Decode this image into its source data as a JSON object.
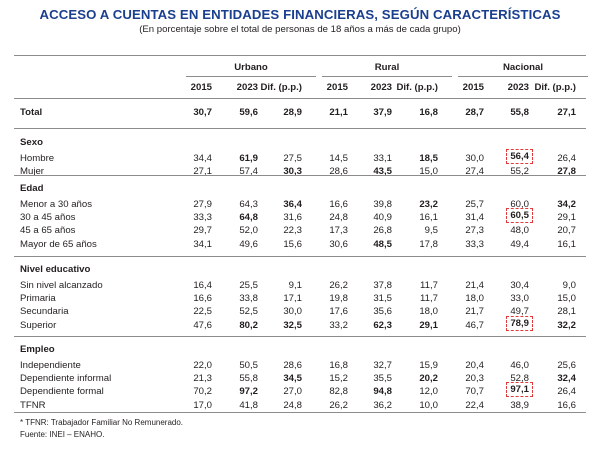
{
  "title": "ACCESO A CUENTAS EN ENTIDADES FINANCIERAS, SEGÚN CARACTERÍSTICAS",
  "subtitle": "(En porcentaje sobre el total de personas de 18 años a más de cada grupo)",
  "groups": [
    "Urbano",
    "Rural",
    "Nacional"
  ],
  "col_headers": [
    "2015",
    "2023",
    "Dif. (p.p.)",
    "2015",
    "2023",
    "Dif. (p.p.)",
    "2015",
    "2023",
    "Dif. (p.p.)"
  ],
  "total": {
    "label": "Total",
    "values": [
      "30,7",
      "59,6",
      "28,9",
      "21,1",
      "37,9",
      "16,8",
      "28,7",
      "55,8",
      "27,1"
    ]
  },
  "sections": [
    {
      "title": "Sexo",
      "rows": [
        {
          "label": "Hombre",
          "values": [
            "34,4",
            "61,9",
            "27,5",
            "14,5",
            "33,1",
            "18,5",
            "30,0",
            "56,4",
            "26,4"
          ],
          "bold": [
            1,
            5,
            7
          ],
          "highlight": [
            7
          ]
        },
        {
          "label": "Mujer",
          "values": [
            "27,1",
            "57,4",
            "30,3",
            "28,6",
            "43,5",
            "15,0",
            "27,4",
            "55,2",
            "27,8"
          ],
          "bold": [
            2,
            4,
            8
          ],
          "highlight": []
        }
      ]
    },
    {
      "title": "Edad",
      "rows": [
        {
          "label": "Menor a 30 años",
          "values": [
            "27,9",
            "64,3",
            "36,4",
            "16,6",
            "39,8",
            "23,2",
            "25,7",
            "60,0",
            "34,2"
          ],
          "bold": [
            2,
            5,
            8
          ],
          "highlight": []
        },
        {
          "label": "30 a 45 años",
          "values": [
            "33,3",
            "64,8",
            "31,6",
            "24,8",
            "40,9",
            "16,1",
            "31,4",
            "60,5",
            "29,1"
          ],
          "bold": [
            1,
            7
          ],
          "highlight": [
            7
          ]
        },
        {
          "label": "45 a 65 años",
          "values": [
            "29,7",
            "52,0",
            "22,3",
            "17,3",
            "26,8",
            "9,5",
            "27,3",
            "48,0",
            "20,7"
          ],
          "bold": [],
          "highlight": []
        },
        {
          "label": "Mayor de 65 años",
          "values": [
            "34,1",
            "49,6",
            "15,6",
            "30,6",
            "48,5",
            "17,8",
            "33,3",
            "49,4",
            "16,1"
          ],
          "bold": [
            4
          ],
          "highlight": []
        }
      ]
    },
    {
      "title": "Nivel educativo",
      "rows": [
        {
          "label": "Sin nivel alcanzado",
          "values": [
            "16,4",
            "25,5",
            "9,1",
            "26,2",
            "37,8",
            "11,7",
            "21,4",
            "30,4",
            "9,0"
          ],
          "bold": [],
          "highlight": []
        },
        {
          "label": "Primaria",
          "values": [
            "16,6",
            "33,8",
            "17,1",
            "19,8",
            "31,5",
            "11,7",
            "18,0",
            "33,0",
            "15,0"
          ],
          "bold": [],
          "highlight": []
        },
        {
          "label": "Secundaria",
          "values": [
            "22,5",
            "52,5",
            "30,0",
            "17,6",
            "35,6",
            "18,0",
            "21,7",
            "49,7",
            "28,1"
          ],
          "bold": [],
          "highlight": []
        },
        {
          "label": "Superior",
          "values": [
            "47,6",
            "80,2",
            "32,5",
            "33,2",
            "62,3",
            "29,1",
            "46,7",
            "78,9",
            "32,2"
          ],
          "bold": [
            1,
            2,
            4,
            5,
            7,
            8
          ],
          "highlight": [
            7
          ]
        }
      ]
    },
    {
      "title": "Empleo",
      "rows": [
        {
          "label": "Independiente",
          "values": [
            "22,0",
            "50,5",
            "28,6",
            "16,8",
            "32,7",
            "15,9",
            "20,4",
            "46,0",
            "25,6"
          ],
          "bold": [],
          "highlight": []
        },
        {
          "label": "Dependiente informal",
          "values": [
            "21,3",
            "55,8",
            "34,5",
            "15,2",
            "35,5",
            "20,2",
            "20,3",
            "52,8",
            "32,4"
          ],
          "bold": [
            2,
            5,
            8
          ],
          "highlight": []
        },
        {
          "label": "Dependiente formal",
          "values": [
            "70,2",
            "97,2",
            "27,0",
            "82,8",
            "94,8",
            "12,0",
            "70,7",
            "97,1",
            "26,4"
          ],
          "bold": [
            1,
            4,
            7
          ],
          "highlight": [
            7
          ]
        },
        {
          "label": "TFNR",
          "values": [
            "17,0",
            "41,8",
            "24,8",
            "26,2",
            "36,2",
            "10,0",
            "22,4",
            "38,9",
            "16,6"
          ],
          "bold": [],
          "highlight": []
        }
      ]
    }
  ],
  "notes": [
    "* TFNR: Trabajador Familiar No Remunerado.",
    "Fuente: INEI – ENAHO."
  ]
}
